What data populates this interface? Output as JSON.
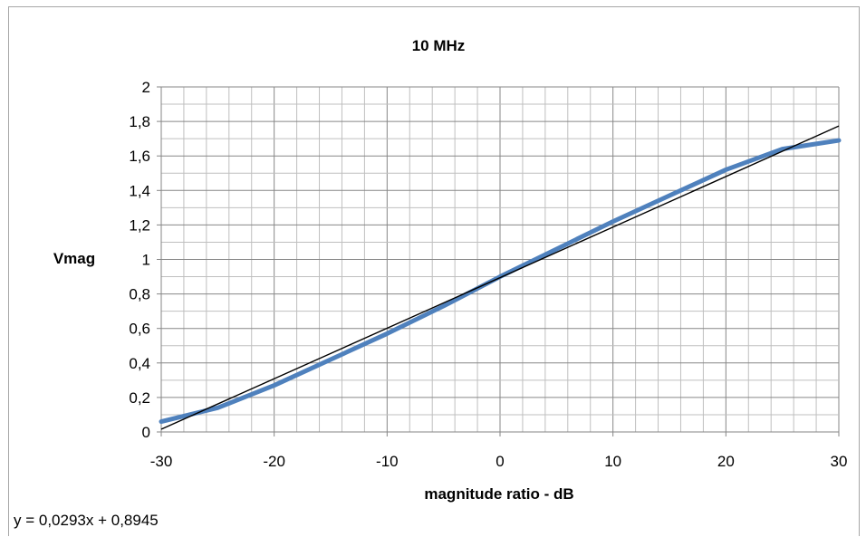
{
  "chart_data": {
    "type": "line",
    "title": "10 MHz",
    "xlabel": "magnitude ratio - dB",
    "ylabel": "Vmag",
    "xlim": [
      -30,
      30
    ],
    "ylim": [
      0,
      2
    ],
    "x_ticks": [
      "-30",
      "-20",
      "-10",
      "0",
      "10",
      "20",
      "30"
    ],
    "y_ticks": [
      "0",
      "0,2",
      "0,4",
      "0,6",
      "0,8",
      "1",
      "1,2",
      "1,4",
      "1,6",
      "1,8",
      "2"
    ],
    "x_tick_values": [
      -30,
      -20,
      -10,
      0,
      10,
      20,
      30
    ],
    "y_tick_values": [
      0,
      0.2,
      0.4,
      0.6,
      0.8,
      1.0,
      1.2,
      1.4,
      1.6,
      1.8,
      2.0
    ],
    "grid": true,
    "series": [
      {
        "color": "#4f81bd",
        "x": [
          -30,
          -25,
          -20,
          -15,
          -10,
          -5,
          0,
          5,
          10,
          15,
          20,
          25,
          30
        ],
        "values": [
          0.06,
          0.14,
          0.27,
          0.42,
          0.57,
          0.73,
          0.9,
          1.06,
          1.22,
          1.37,
          1.52,
          1.64,
          1.69
        ]
      }
    ],
    "trendline": {
      "color": "#000000",
      "slope": 0.0293,
      "intercept": 0.8945,
      "equation": "y = 0,0293x + 0,8945"
    }
  }
}
